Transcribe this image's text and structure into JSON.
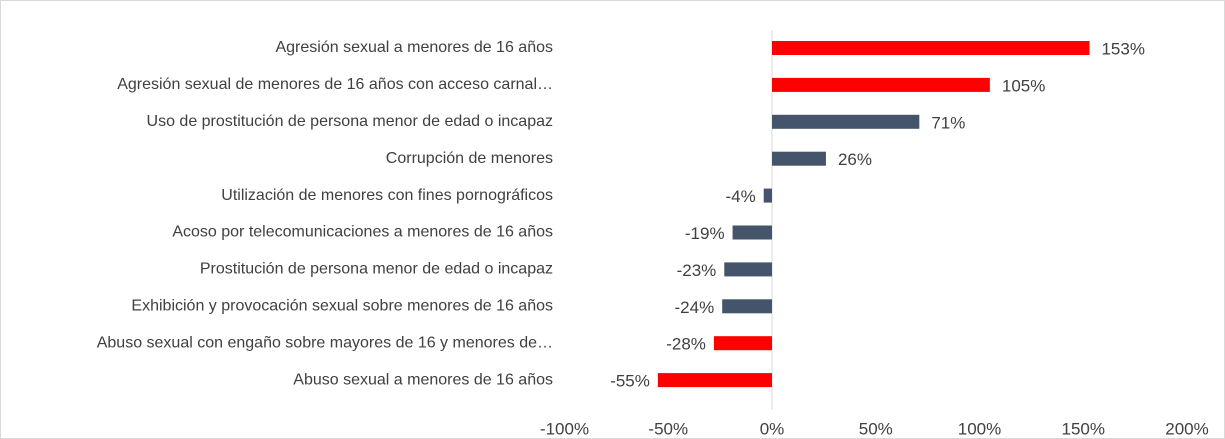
{
  "chart_data": {
    "type": "hbar",
    "categories": [
      "Agresión sexual a menores de 16 años",
      "Agresión sexual de menores de 16 años con acceso carnal…",
      "Uso de prostitución de persona menor de edad o incapaz",
      "Corrupción de menores",
      "Utilización de menores con fines pornográficos",
      "Acoso por telecomunicaciones a menores de 16 años",
      "Prostitución de persona menor de edad o incapaz",
      "Exhibición y provocación sexual sobre menores de 16 años",
      "Abuso sexual con engaño sobre mayores de 16 y menores de…",
      "Abuso sexual a menores de 16 años"
    ],
    "values": [
      153,
      105,
      71,
      26,
      -4,
      -19,
      -23,
      -24,
      -28,
      -55
    ],
    "value_labels": [
      "153%",
      "105%",
      "71%",
      "26%",
      "-4%",
      "-19%",
      "-23%",
      "-24%",
      "-28%",
      "-55%"
    ],
    "colors": [
      "#ff0000",
      "#ff0000",
      "#44546a",
      "#44546a",
      "#44546a",
      "#44546a",
      "#44546a",
      "#44546a",
      "#ff0000",
      "#ff0000"
    ],
    "xlim": [
      -100,
      200
    ],
    "xticks": [
      {
        "value": -100,
        "label": "-100%"
      },
      {
        "value": -50,
        "label": "-50%"
      },
      {
        "value": 0,
        "label": "0%"
      },
      {
        "value": 50,
        "label": "50%"
      },
      {
        "value": 100,
        "label": "100%"
      },
      {
        "value": 150,
        "label": "150%"
      },
      {
        "value": 200,
        "label": "200%"
      }
    ]
  }
}
